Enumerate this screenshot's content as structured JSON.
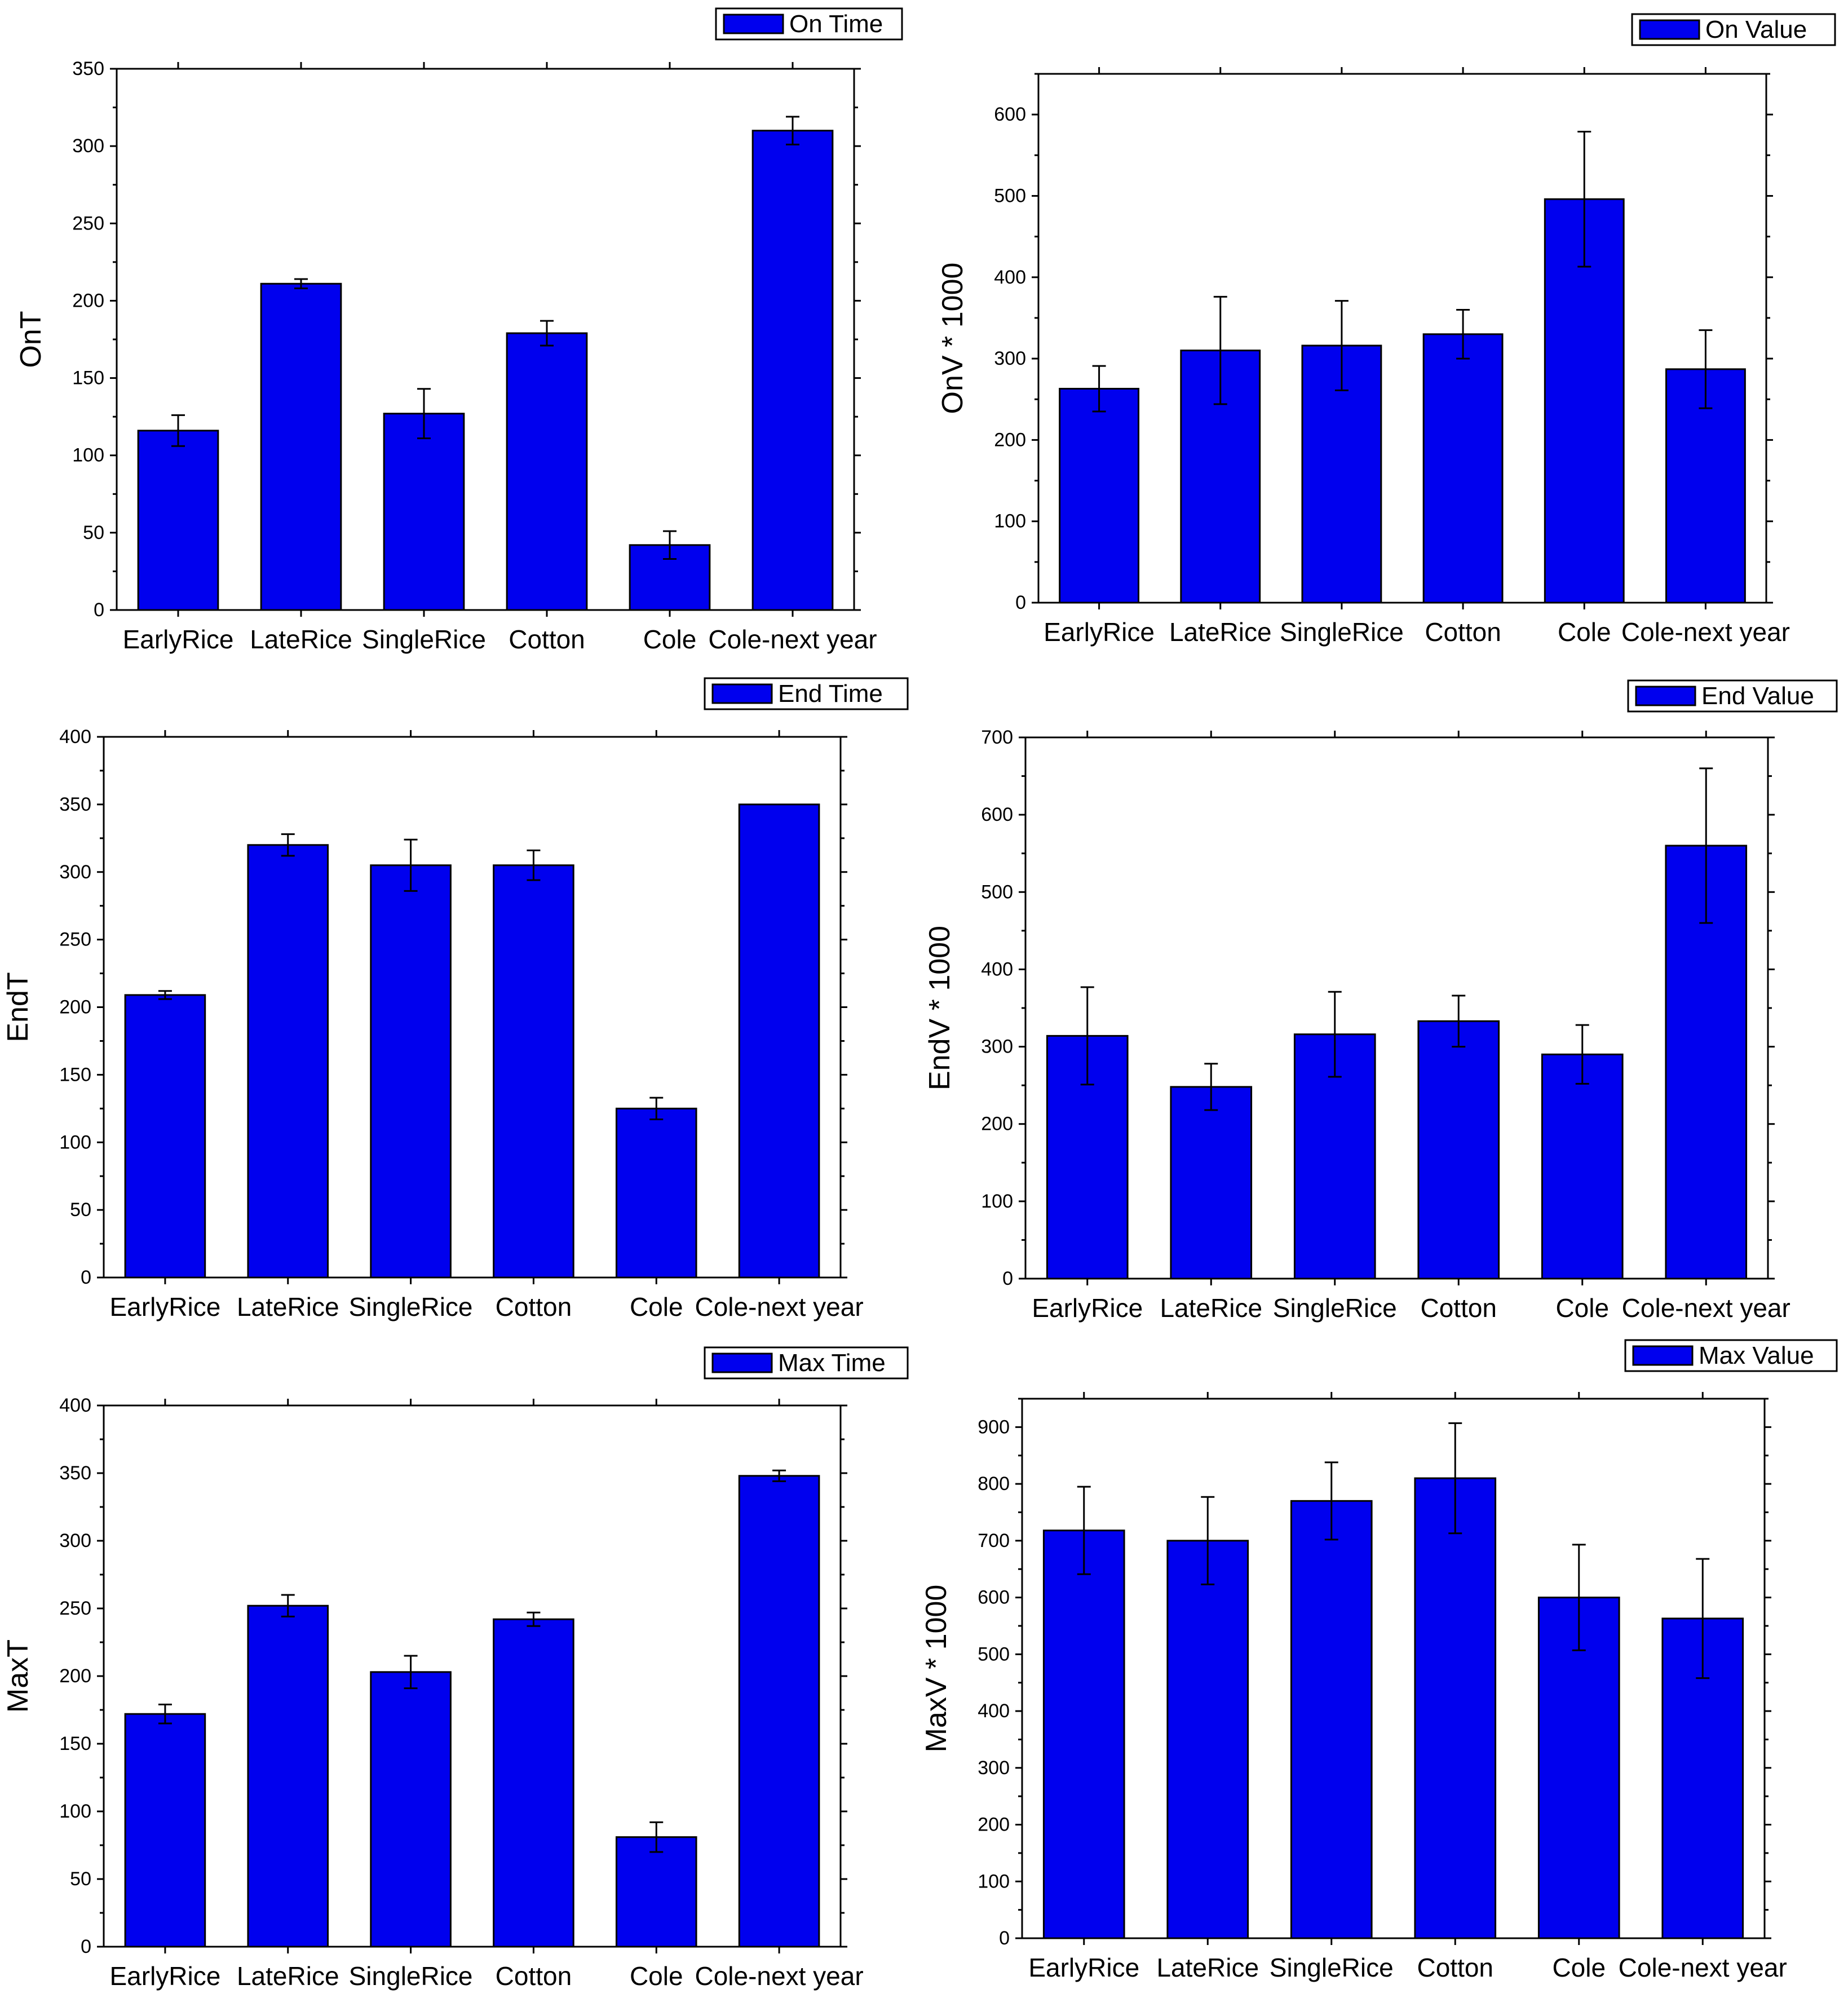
{
  "chart_data": [
    {
      "type": "bar",
      "title": "",
      "legend": "On Time",
      "legend_position": "top-right",
      "ylabel": "OnT",
      "xlabel": "",
      "categories": [
        "EarlyRice",
        "LateRice",
        "SingleRice",
        "Cotton",
        "Cole",
        "Cole-next year"
      ],
      "values": [
        116,
        211,
        127,
        179,
        42,
        310
      ],
      "errors": [
        10,
        3,
        16,
        8,
        9,
        9
      ],
      "ylim": [
        0,
        350
      ],
      "yticks": [
        "0",
        "50",
        "100",
        "150",
        "200",
        "250",
        "300",
        "350"
      ],
      "ytick_values": [
        0,
        50,
        100,
        150,
        200,
        250,
        300,
        350
      ],
      "bar_color": "#0000ee"
    },
    {
      "type": "bar",
      "title": "",
      "legend": "On Value",
      "legend_position": "top-right",
      "ylabel": "OnV * 1000",
      "xlabel": "",
      "categories": [
        "EarlyRice",
        "LateRice",
        "SingleRice",
        "Cotton",
        "Cole",
        "Cole-next year"
      ],
      "values": [
        263,
        310,
        316,
        330,
        496,
        287
      ],
      "errors": [
        28,
        66,
        55,
        30,
        83,
        48
      ],
      "ylim": [
        0,
        650
      ],
      "yticks": [
        "0",
        "100",
        "200",
        "300",
        "400",
        "500",
        "600"
      ],
      "ytick_values": [
        0,
        100,
        200,
        300,
        400,
        500,
        600
      ],
      "bar_color": "#0000ee"
    },
    {
      "type": "bar",
      "title": "",
      "legend": "End Time",
      "legend_position": "top-right",
      "ylabel": "EndT",
      "xlabel": "",
      "categories": [
        "EarlyRice",
        "LateRice",
        "SingleRice",
        "Cotton",
        "Cole",
        "Cole-next year"
      ],
      "values": [
        209,
        320,
        305,
        305,
        125,
        350
      ],
      "errors": [
        3,
        8,
        19,
        11,
        8,
        0
      ],
      "ylim": [
        0,
        400
      ],
      "yticks": [
        "0",
        "50",
        "100",
        "150",
        "200",
        "250",
        "300",
        "350",
        "400"
      ],
      "ytick_values": [
        0,
        50,
        100,
        150,
        200,
        250,
        300,
        350,
        400
      ],
      "bar_color": "#0000ee"
    },
    {
      "type": "bar",
      "title": "",
      "legend": "End Value",
      "legend_position": "top-right",
      "ylabel": "EndV * 1000",
      "xlabel": "",
      "categories": [
        "EarlyRice",
        "LateRice",
        "SingleRice",
        "Cotton",
        "Cole",
        "Cole-next year"
      ],
      "values": [
        314,
        248,
        316,
        333,
        290,
        560
      ],
      "errors": [
        63,
        30,
        55,
        33,
        38,
        100
      ],
      "ylim": [
        0,
        700
      ],
      "yticks": [
        "0",
        "100",
        "200",
        "300",
        "400",
        "500",
        "600",
        "700"
      ],
      "ytick_values": [
        0,
        100,
        200,
        300,
        400,
        500,
        600,
        700
      ],
      "bar_color": "#0000ee"
    },
    {
      "type": "bar",
      "title": "",
      "legend": "Max Time",
      "legend_position": "top-right",
      "ylabel": "MaxT",
      "xlabel": "",
      "categories": [
        "EarlyRice",
        "LateRice",
        "SingleRice",
        "Cotton",
        "Cole",
        "Cole-next year"
      ],
      "values": [
        172,
        252,
        203,
        242,
        81,
        348
      ],
      "errors": [
        7,
        8,
        12,
        5,
        11,
        4
      ],
      "ylim": [
        0,
        400
      ],
      "yticks": [
        "0",
        "50",
        "100",
        "150",
        "200",
        "250",
        "300",
        "350",
        "400"
      ],
      "ytick_values": [
        0,
        50,
        100,
        150,
        200,
        250,
        300,
        350,
        400
      ],
      "bar_color": "#0000ee"
    },
    {
      "type": "bar",
      "title": "",
      "legend": "Max Value",
      "legend_position": "top-right",
      "ylabel": "MaxV * 1000",
      "xlabel": "",
      "categories": [
        "EarlyRice",
        "LateRice",
        "SingleRice",
        "Cotton",
        "Cole",
        "Cole-next year"
      ],
      "values": [
        718,
        700,
        770,
        810,
        600,
        563
      ],
      "errors": [
        77,
        77,
        68,
        97,
        93,
        105
      ],
      "ylim": [
        0,
        950
      ],
      "yticks": [
        "0",
        "100",
        "200",
        "300",
        "400",
        "500",
        "600",
        "700",
        "800",
        "900"
      ],
      "ytick_values": [
        0,
        100,
        200,
        300,
        400,
        500,
        600,
        700,
        800,
        900
      ],
      "bar_color": "#0000ee"
    }
  ]
}
